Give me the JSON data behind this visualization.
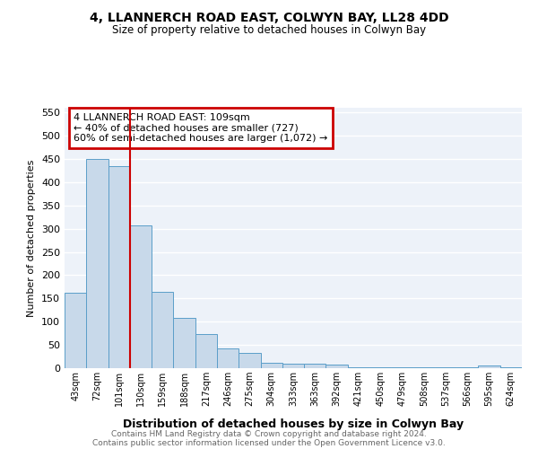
{
  "title1": "4, LLANNERCH ROAD EAST, COLWYN BAY, LL28 4DD",
  "title2": "Size of property relative to detached houses in Colwyn Bay",
  "xlabel": "Distribution of detached houses by size in Colwyn Bay",
  "ylabel": "Number of detached properties",
  "categories": [
    "43sqm",
    "72sqm",
    "101sqm",
    "130sqm",
    "159sqm",
    "188sqm",
    "217sqm",
    "246sqm",
    "275sqm",
    "304sqm",
    "333sqm",
    "363sqm",
    "392sqm",
    "421sqm",
    "450sqm",
    "479sqm",
    "508sqm",
    "537sqm",
    "566sqm",
    "595sqm",
    "624sqm"
  ],
  "values": [
    163,
    450,
    435,
    307,
    165,
    108,
    74,
    43,
    32,
    12,
    10,
    10,
    8,
    2,
    2,
    2,
    2,
    2,
    2,
    5,
    2
  ],
  "bar_color": "#c8d9ea",
  "bar_edge_color": "#5b9ec9",
  "background_color": "#edf2f9",
  "ylim": [
    0,
    560
  ],
  "yticks": [
    0,
    50,
    100,
    150,
    200,
    250,
    300,
    350,
    400,
    450,
    500,
    550
  ],
  "red_line_color": "#cc0000",
  "red_line_x": 2.5,
  "annotation_text": "4 LLANNERCH ROAD EAST: 109sqm\n← 40% of detached houses are smaller (727)\n60% of semi-detached houses are larger (1,072) →",
  "annotation_box_color": "#ffffff",
  "annotation_box_edge_color": "#cc0000",
  "footer1": "Contains HM Land Registry data © Crown copyright and database right 2024.",
  "footer2": "Contains public sector information licensed under the Open Government Licence v3.0."
}
